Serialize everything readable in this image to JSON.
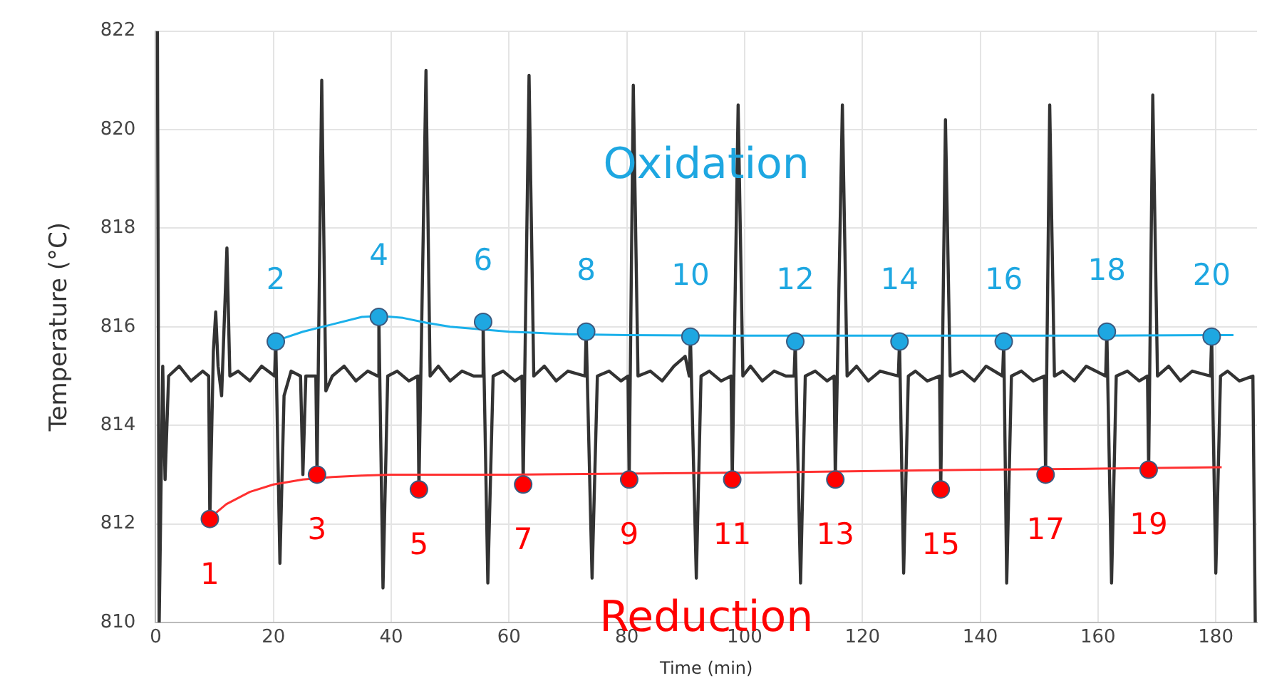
{
  "chart_data": {
    "type": "line",
    "xlabel": "Time (min)",
    "ylabel": "Temperature (°C)",
    "xlim": [
      0,
      187
    ],
    "ylim": [
      810,
      822
    ],
    "xticks": [
      0,
      20,
      40,
      60,
      80,
      100,
      120,
      140,
      160,
      180
    ],
    "yticks": [
      810,
      812,
      814,
      816,
      818,
      820,
      822
    ],
    "grid": true,
    "legend": false,
    "series": [
      {
        "color": "#333333",
        "x": [
          0.3,
          0.6,
          1.2,
          1.6,
          2.2,
          4,
          6,
          8,
          9.0,
          9.2,
          9.8,
          10.2,
          10.6,
          11.2,
          12.1,
          12.6,
          14,
          16,
          18,
          20.2,
          20.4,
          21.1,
          21.8,
          23,
          24.6,
          25.0,
          25.5,
          27.2,
          27.4,
          28.2,
          28.9,
          30,
          32,
          34,
          36,
          37.7,
          37.9,
          38.6,
          39.4,
          41,
          43,
          44.5,
          44.7,
          45.9,
          46.6,
          48,
          50,
          52,
          54,
          55.4,
          55.6,
          56.4,
          57.3,
          59,
          61,
          62.2,
          62.4,
          63.4,
          64.2,
          66,
          68,
          70,
          72.9,
          73.1,
          74.1,
          75,
          77,
          79,
          80.2,
          80.4,
          81.1,
          81.9,
          84,
          86,
          88,
          89.9,
          90.6,
          90.8,
          91.8,
          92.6,
          94,
          96,
          97.7,
          97.9,
          98.9,
          99.7,
          101,
          103,
          105,
          107,
          108.4,
          108.6,
          109.5,
          110.3,
          112,
          114,
          115.2,
          115.4,
          116.6,
          117.4,
          119,
          121,
          123,
          126.1,
          126.3,
          127,
          127.8,
          129,
          131,
          133.1,
          133.3,
          134.1,
          134.9,
          137,
          139,
          141,
          143.8,
          144.0,
          144.5,
          145.3,
          147,
          149,
          150.9,
          151.1,
          151.8,
          152.6,
          154,
          156,
          158,
          161.3,
          161.5,
          162.3,
          163.1,
          165,
          167,
          168.4,
          168.6,
          169.3,
          170.1,
          172,
          174,
          176,
          179.1,
          179.3,
          180,
          180.8,
          182,
          184,
          186.3,
          186.7
        ],
        "values": [
          822,
          810,
          815.2,
          812.9,
          815.0,
          815.2,
          814.9,
          815.1,
          815.0,
          812.1,
          815.5,
          816.3,
          815.2,
          814.6,
          817.6,
          815.0,
          815.1,
          814.9,
          815.2,
          815.0,
          815.7,
          811.2,
          814.6,
          815.1,
          815.0,
          813.0,
          815.0,
          815.0,
          813.0,
          821.0,
          814.7,
          815.0,
          815.2,
          814.9,
          815.1,
          815.0,
          816.2,
          810.7,
          815.0,
          815.1,
          814.9,
          815.0,
          812.7,
          821.2,
          815.0,
          815.2,
          814.9,
          815.1,
          815.0,
          815.0,
          816.1,
          810.8,
          815.0,
          815.1,
          814.9,
          815.0,
          812.8,
          821.1,
          815.0,
          815.2,
          814.9,
          815.1,
          815.0,
          815.9,
          810.9,
          815.0,
          815.1,
          814.9,
          815.0,
          812.9,
          820.9,
          815.0,
          815.1,
          814.9,
          815.2,
          815.4,
          815.0,
          815.8,
          810.9,
          815.0,
          815.1,
          814.9,
          815.0,
          812.9,
          820.5,
          815.0,
          815.2,
          814.9,
          815.1,
          815.0,
          815.0,
          815.7,
          810.8,
          815.0,
          815.1,
          814.9,
          815.0,
          812.9,
          820.5,
          815.0,
          815.2,
          814.9,
          815.1,
          815.0,
          815.7,
          811.0,
          815.0,
          815.1,
          814.9,
          815.0,
          812.7,
          820.2,
          815.0,
          815.1,
          814.9,
          815.2,
          815.0,
          815.7,
          810.8,
          815.0,
          815.1,
          814.9,
          815.0,
          813.0,
          820.5,
          815.0,
          815.1,
          814.9,
          815.2,
          815.0,
          815.9,
          810.8,
          815.0,
          815.1,
          814.9,
          815.0,
          813.1,
          820.7,
          815.0,
          815.2,
          814.9,
          815.1,
          815.0,
          815.8,
          811.0,
          815.0,
          815.1,
          814.9,
          815.0,
          810
        ]
      },
      {
        "color": "#1ab0ea",
        "x": [
          20,
          25,
          30,
          35,
          38,
          42,
          46,
          50,
          55,
          60,
          70,
          80,
          100,
          120,
          140,
          160,
          180,
          183
        ],
        "values": [
          815.7,
          815.9,
          816.05,
          816.2,
          816.22,
          816.18,
          816.08,
          816.0,
          815.95,
          815.9,
          815.85,
          815.83,
          815.82,
          815.82,
          815.82,
          815.82,
          815.83,
          815.83
        ]
      },
      {
        "color": "#ff3030",
        "x": [
          9,
          12,
          16,
          20,
          25,
          30,
          35,
          40,
          50,
          60,
          80,
          100,
          120,
          140,
          160,
          181
        ],
        "values": [
          812.1,
          812.4,
          812.65,
          812.8,
          812.9,
          812.95,
          812.98,
          813.0,
          813.0,
          813.0,
          813.02,
          813.04,
          813.07,
          813.1,
          813.12,
          813.15
        ]
      },
      {
        "type": "scatter",
        "name": "Oxidation",
        "marker": "circle",
        "color": "#1ea7e1",
        "x": [
          20.4,
          37.9,
          55.6,
          73.1,
          90.8,
          108.6,
          126.3,
          144.0,
          161.5,
          179.3
        ],
        "values": [
          815.7,
          816.2,
          816.1,
          815.9,
          815.8,
          815.7,
          815.7,
          815.7,
          815.9,
          815.8
        ]
      },
      {
        "type": "scatter",
        "name": "Reduction",
        "marker": "circle",
        "color": "#ff0000",
        "x": [
          9.2,
          27.4,
          44.7,
          62.4,
          80.4,
          97.9,
          115.4,
          133.3,
          151.1,
          168.6
        ],
        "values": [
          812.1,
          813.0,
          812.7,
          812.8,
          812.9,
          812.9,
          812.9,
          812.7,
          813.0,
          813.1
        ]
      }
    ],
    "annotations": [
      {
        "text": "1",
        "x": 9.2,
        "y": 812.1
      },
      {
        "text": "2",
        "x": 20.4,
        "y": 815.7
      },
      {
        "text": "3",
        "x": 27.4,
        "y": 813.0
      },
      {
        "text": "4",
        "x": 37.9,
        "y": 816.2
      },
      {
        "text": "5",
        "x": 44.7,
        "y": 812.7
      },
      {
        "text": "6",
        "x": 55.6,
        "y": 816.1
      },
      {
        "text": "7",
        "x": 62.4,
        "y": 812.8
      },
      {
        "text": "8",
        "x": 73.1,
        "y": 815.9
      },
      {
        "text": "9",
        "x": 80.4,
        "y": 812.9
      },
      {
        "text": "10",
        "x": 90.8,
        "y": 815.8
      },
      {
        "text": "11",
        "x": 97.9,
        "y": 812.9
      },
      {
        "text": "12",
        "x": 108.6,
        "y": 815.7
      },
      {
        "text": "13",
        "x": 115.4,
        "y": 812.9
      },
      {
        "text": "14",
        "x": 126.3,
        "y": 815.7
      },
      {
        "text": "15",
        "x": 133.3,
        "y": 812.7
      },
      {
        "text": "16",
        "x": 144.0,
        "y": 815.7
      },
      {
        "text": "17",
        "x": 151.1,
        "y": 813.0
      },
      {
        "text": "18",
        "x": 161.5,
        "y": 815.9
      },
      {
        "text": "19",
        "x": 168.6,
        "y": 813.1
      },
      {
        "text": "20",
        "x": 179.3,
        "y": 815.8
      }
    ]
  }
}
